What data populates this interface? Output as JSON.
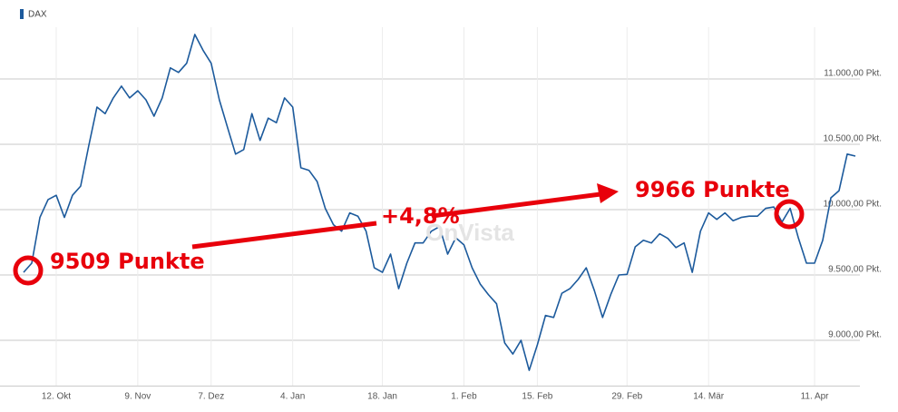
{
  "chart_data": {
    "type": "line",
    "categories": [
      null,
      null,
      null,
      null,
      "12. Okt",
      null,
      null,
      null,
      null,
      null,
      null,
      null,
      null,
      null,
      "9. Nov",
      null,
      null,
      null,
      null,
      null,
      null,
      null,
      null,
      "7. Dez",
      null,
      null,
      null,
      null,
      null,
      null,
      null,
      null,
      null,
      "4. Jan",
      null,
      null,
      null,
      null,
      null,
      null,
      null,
      null,
      null,
      null,
      "18. Jan",
      null,
      null,
      null,
      null,
      null,
      null,
      null,
      null,
      null,
      "1. Feb",
      null,
      null,
      null,
      null,
      null,
      null,
      null,
      null,
      "15. Feb",
      null,
      null,
      null,
      null,
      null,
      null,
      null,
      null,
      null,
      null,
      "29. Feb",
      null,
      null,
      null,
      null,
      null,
      null,
      null,
      null,
      null,
      "14. Mär",
      null,
      null,
      null,
      null,
      null,
      null,
      null,
      null,
      null,
      null,
      null,
      null,
      "11. Apr",
      null,
      null,
      null,
      null,
      null
    ],
    "series": [
      {
        "name": "DAX",
        "color": "#1c5a9c",
        "values": [
          9520,
          9590,
          9940,
          10077,
          10110,
          9940,
          10110,
          10180,
          10490,
          10785,
          10735,
          10855,
          10945,
          10855,
          10910,
          10840,
          10715,
          10855,
          11085,
          11050,
          11120,
          11340,
          11220,
          11120,
          10840,
          10630,
          10425,
          10460,
          10735,
          10530,
          10700,
          10665,
          10855,
          10785,
          10320,
          10300,
          10215,
          10010,
          9885,
          9835,
          9975,
          9950,
          9835,
          9555,
          9520,
          9660,
          9395,
          9590,
          9745,
          9745,
          9835,
          9870,
          9660,
          9785,
          9730,
          9555,
          9430,
          9350,
          9280,
          8980,
          8895,
          9000,
          8770,
          8965,
          9190,
          9175,
          9360,
          9395,
          9465,
          9555,
          9380,
          9175,
          9350,
          9500,
          9505,
          9715,
          9765,
          9745,
          9815,
          9780,
          9710,
          9745,
          9520,
          9835,
          9975,
          9925,
          9975,
          9915,
          9940,
          9950,
          9950,
          10010,
          10020,
          9905,
          10010,
          9785,
          9590,
          9590,
          9765,
          10090,
          10145,
          10425,
          10410
        ]
      }
    ],
    "ylim": [
      8650,
      11400
    ],
    "yticks": [
      {
        "value": 9000,
        "label": "9.000,00 Pkt."
      },
      {
        "value": 9500,
        "label": "9.500,00 Pkt."
      },
      {
        "value": 10000,
        "label": "10.000,00 Pkt."
      },
      {
        "value": 10500,
        "label": "10.500,00 Pkt."
      },
      {
        "value": 11000,
        "label": "11.000,00 Pkt."
      }
    ],
    "grid": true,
    "annotations": [
      "9509 Punkte",
      "+4,8%",
      "9966 Punkte",
      "OnVista"
    ]
  }
}
